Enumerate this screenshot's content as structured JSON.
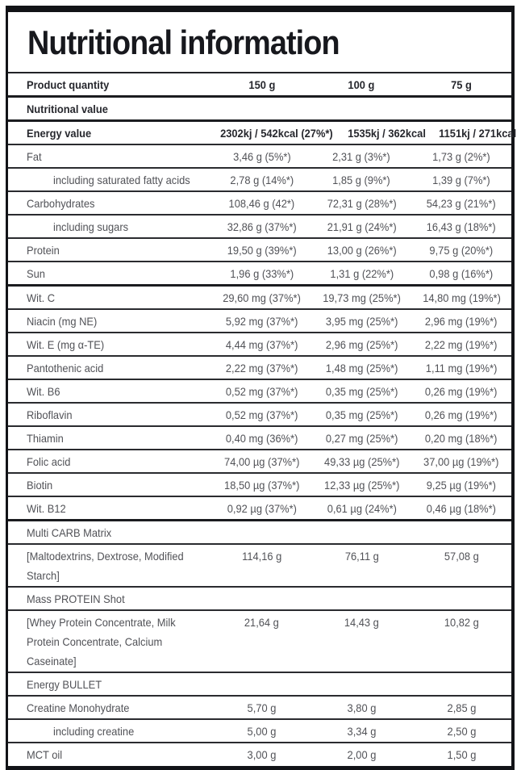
{
  "title": "Nutritional information",
  "colors": {
    "frame_border": "#121317",
    "row_divider": "#2a2b2f",
    "text_regular": "#515257",
    "text_bold": "#26272d",
    "background": "#ffffff"
  },
  "table": {
    "quantity_columns": [
      "150 g",
      "100 g",
      "75 g"
    ],
    "rows": [
      {
        "label": "Product quantity",
        "values": [
          "150 g",
          "100 g",
          "75 g"
        ],
        "bold": true,
        "thick": true
      },
      {
        "label": "Nutritional value",
        "values": [],
        "bold": true,
        "section": true,
        "thick": true
      },
      {
        "label": "Energy value",
        "values": [
          "2302kj / 542kcal (27%*)",
          "1535kj / 362kcal",
          "1151kj / 271kcal"
        ],
        "bold": true
      },
      {
        "label": "Fat",
        "values": [
          "3,46 g (5%*)",
          "2,31 g (3%*)",
          "1,73 g (2%*)"
        ]
      },
      {
        "label": "including saturated fatty acids",
        "values": [
          "2,78 g (14%*)",
          "1,85 g (9%*)",
          "1,39 g (7%*)"
        ],
        "indent": true
      },
      {
        "label": "Carbohydrates",
        "values": [
          "108,46 g (42*)",
          "72,31 g (28%*)",
          "54,23 g (21%*)"
        ]
      },
      {
        "label": "including sugars",
        "values": [
          "32,86 g (37%*)",
          "21,91 g (24%*)",
          "16,43 g (18%*)"
        ],
        "indent": true
      },
      {
        "label": "Protein",
        "values": [
          "19,50 g (39%*)",
          "13,00 g (26%*)",
          "9,75 g (20%*)"
        ]
      },
      {
        "label": "Sun",
        "values": [
          "1,96 g (33%*)",
          "1,31 g (22%*)",
          "0,98 g (16%*)"
        ],
        "thick": true
      },
      {
        "label": "Wit. C",
        "values": [
          "29,60 mg (37%*)",
          "19,73 mg (25%*)",
          "14,80 mg (19%*)"
        ]
      },
      {
        "label": "Niacin (mg NE)",
        "values": [
          "5,92 mg (37%*)",
          "3,95 mg (25%*)",
          "2,96 mg (19%*)"
        ]
      },
      {
        "label": "Wit. E (mg α-TE)",
        "values": [
          "4,44 mg (37%*)",
          "2,96 mg (25%*)",
          "2,22 mg (19%*)"
        ]
      },
      {
        "label": "Pantothenic acid",
        "values": [
          "2,22 mg (37%*)",
          "1,48 mg (25%*)",
          "1,11 mg (19%*)"
        ]
      },
      {
        "label": "Wit. B6",
        "values": [
          "0,52 mg (37%*)",
          "0,35 mg (25%*)",
          "0,26 mg (19%*)"
        ]
      },
      {
        "label": "Riboflavin",
        "values": [
          "0,52 mg (37%*)",
          "0,35 mg (25%*)",
          "0,26 mg (19%*)"
        ]
      },
      {
        "label": "Thiamin",
        "values": [
          "0,40 mg (36%*)",
          "0,27 mg (25%*)",
          "0,20 mg (18%*)"
        ]
      },
      {
        "label": "Folic acid",
        "values": [
          "74,00 µg (37%*)",
          "49,33 µg (25%*)",
          "37,00 µg (19%*)"
        ]
      },
      {
        "label": "Biotin",
        "values": [
          "18,50 µg (37%*)",
          "12,33 µg (25%*)",
          "9,25 µg (19%*)"
        ]
      },
      {
        "label": "Wit. B12",
        "values": [
          "0,92 µg (37%*)",
          "0,61 µg (24%*)",
          "0,46 µg (18%*)"
        ],
        "thick": true
      },
      {
        "label": "Multi CARB Matrix",
        "values": [],
        "section": true
      },
      {
        "label": "[Maltodextrins, Dextrose, Modified Starch]",
        "values": [
          "114,16 g",
          "76,11 g",
          "57,08 g"
        ]
      },
      {
        "label": "Mass PROTEIN Shot",
        "values": [],
        "section": true
      },
      {
        "label": "[Whey Protein Concentrate, Milk Protein Concentrate, Calcium Caseinate]",
        "values": [
          "21,64 g",
          "14,43 g",
          "10,82 g"
        ]
      },
      {
        "label": "Energy BULLET",
        "values": [],
        "section": true
      },
      {
        "label": "Creatine Monohydrate",
        "values": [
          "5,70 g",
          "3,80 g",
          "2,85 g"
        ]
      },
      {
        "label": "including creatine",
        "values": [
          "5,00 g",
          "3,34 g",
          "2,50 g"
        ],
        "indent": true
      },
      {
        "label": "MCT oil",
        "values": [
          "3,00 g",
          "2,00 g",
          "1,50 g"
        ]
      }
    ]
  }
}
